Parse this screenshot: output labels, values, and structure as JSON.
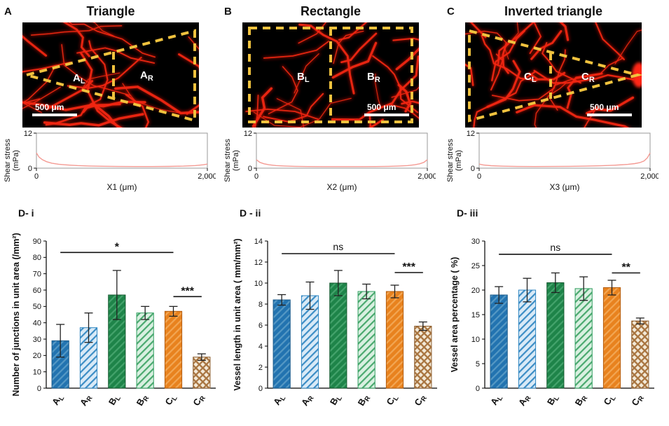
{
  "figure": {
    "top_panels": [
      {
        "letter": "A",
        "title": "Triangle",
        "shape": "triangle",
        "regions": [
          {
            "main": "A",
            "sub": "L"
          },
          {
            "main": "A",
            "sub": "R"
          }
        ],
        "scale_bar": {
          "text": "500 μm",
          "align": "left"
        }
      },
      {
        "letter": "B",
        "title": "Rectangle",
        "shape": "rectangle",
        "regions": [
          {
            "main": "B",
            "sub": "L"
          },
          {
            "main": "B",
            "sub": "R"
          }
        ],
        "scale_bar": {
          "text": "500 μm",
          "align": "right"
        }
      },
      {
        "letter": "C",
        "title": "Inverted triangle",
        "shape": "inverted-triangle",
        "regions": [
          {
            "main": "C",
            "sub": "L"
          },
          {
            "main": "C",
            "sub": "R"
          }
        ],
        "scale_bar": {
          "text": "500 μm",
          "align": "right"
        }
      }
    ],
    "bottom_panels": [
      {
        "label": "D- i"
      },
      {
        "label": "D - ii"
      },
      {
        "label": "D- iii"
      }
    ]
  },
  "colors": {
    "vessel_red": "#f02612",
    "vessel_glow": "#d81607",
    "dash_yellow": "#f0c23e",
    "curve_pink": "#f49a93",
    "axis_black": "#111111",
    "scalebar_white": "#ffffff"
  },
  "bar_styles": [
    {
      "fill": "#2273b0",
      "hatch": "#5598c4",
      "edge": "#1a5a8a",
      "cross": false
    },
    {
      "fill": "#d9eaf7",
      "hatch": "#3c8dc5",
      "edge": "#2e86c1",
      "cross": false
    },
    {
      "fill": "#1e8449",
      "hatch": "#44a36c",
      "edge": "#14592f",
      "cross": false
    },
    {
      "fill": "#d9f0e1",
      "hatch": "#4aa96f",
      "edge": "#2f9e5f",
      "cross": false
    },
    {
      "fill": "#e8821e",
      "hatch": "#f2a653",
      "edge": "#b35c0e",
      "cross": false
    },
    {
      "fill": "#f3ead9",
      "hatch": "#a8743f",
      "edge": "#8a5a2b",
      "cross": true
    }
  ],
  "chart_data": [
    {
      "id": "shear-A",
      "type": "line",
      "ylabel_lines": [
        "Shear stress",
        "(mPa)"
      ],
      "xlabel": "X1 (μm)",
      "xlim": [
        0,
        2000
      ],
      "ylim": [
        0,
        12
      ],
      "xtick_labels": [
        "0",
        "2,000"
      ],
      "ytick_labels": [
        "0",
        "12"
      ],
      "x": [
        0,
        30,
        70,
        120,
        180,
        260,
        360,
        480,
        620,
        780,
        960,
        1150,
        1350,
        1550,
        1720,
        1860,
        1950,
        2000
      ],
      "y": [
        5.2,
        3.8,
        2.9,
        2.2,
        1.7,
        1.35,
        1.1,
        0.9,
        0.75,
        0.65,
        0.58,
        0.55,
        0.55,
        0.6,
        0.7,
        0.9,
        1.15,
        1.4
      ]
    },
    {
      "id": "shear-B",
      "type": "line",
      "ylabel_lines": [
        "Shear stress",
        "(mPa)"
      ],
      "xlabel": "X2 (μm)",
      "xlim": [
        0,
        2000
      ],
      "ylim": [
        0,
        12
      ],
      "xtick_labels": [
        "0",
        "2,000"
      ],
      "ytick_labels": [
        "0",
        "12"
      ],
      "x": [
        0,
        40,
        90,
        150,
        230,
        330,
        450,
        600,
        780,
        1000,
        1220,
        1400,
        1550,
        1670,
        1770,
        1850,
        1910,
        1960,
        2000
      ],
      "y": [
        2.9,
        2.0,
        1.5,
        1.15,
        0.9,
        0.75,
        0.63,
        0.56,
        0.53,
        0.52,
        0.53,
        0.56,
        0.63,
        0.75,
        0.9,
        1.15,
        1.5,
        2.0,
        2.9
      ]
    },
    {
      "id": "shear-C",
      "type": "line",
      "ylabel_lines": [
        "Shear stress",
        "(mPa)"
      ],
      "xlabel": "X3 (μm)",
      "xlim": [
        0,
        2000
      ],
      "ylim": [
        0,
        12
      ],
      "xtick_labels": [
        "0",
        "2,000"
      ],
      "ytick_labels": [
        "0",
        "12"
      ],
      "x": [
        0,
        50,
        140,
        280,
        450,
        650,
        850,
        1050,
        1240,
        1420,
        1580,
        1740,
        1820,
        1880,
        1930,
        1970,
        2000
      ],
      "y": [
        1.4,
        1.1,
        0.85,
        0.68,
        0.58,
        0.55,
        0.57,
        0.62,
        0.7,
        0.82,
        1.0,
        1.3,
        1.55,
        1.9,
        2.5,
        3.6,
        5.2
      ]
    },
    {
      "id": "junctions",
      "type": "bar",
      "ylabel": "Number of junctions in unit area (/mm²)",
      "categories": [
        "A_L",
        "A_R",
        "B_L",
        "B_R",
        "C_L",
        "C_R"
      ],
      "values": [
        29,
        37,
        57,
        46,
        47,
        19
      ],
      "errors": [
        10,
        9,
        15,
        4,
        3,
        2
      ],
      "ylim": [
        0,
        90
      ],
      "ytick_step": 10,
      "annotations": [
        {
          "label": "*",
          "from": 0,
          "to": 4,
          "y": 83
        },
        {
          "label": "***",
          "from": 4,
          "to": 5,
          "y": 56
        }
      ]
    },
    {
      "id": "length",
      "type": "bar",
      "ylabel": "Vessel length in unit area ( mm/mm²)",
      "categories": [
        "A_L",
        "A_R",
        "B_L",
        "B_R",
        "C_L",
        "C_R"
      ],
      "values": [
        8.4,
        8.8,
        10.0,
        9.2,
        9.2,
        5.9
      ],
      "errors": [
        0.5,
        1.3,
        1.2,
        0.7,
        0.6,
        0.4
      ],
      "ylim": [
        0,
        14
      ],
      "ytick_step": 2,
      "annotations": [
        {
          "label": "ns",
          "from": 0,
          "to": 4,
          "y": 12.8
        },
        {
          "label": "***",
          "from": 4,
          "to": 5,
          "y": 11.0
        }
      ]
    },
    {
      "id": "area",
      "type": "bar",
      "ylabel": "Vessel area percentage ( %)",
      "categories": [
        "A_L",
        "A_R",
        "B_L",
        "B_R",
        "C_L",
        "C_R"
      ],
      "values": [
        19,
        20,
        21.5,
        20.3,
        20.5,
        13.7
      ],
      "errors": [
        1.7,
        2.4,
        2.0,
        2.4,
        1.5,
        0.6
      ],
      "ylim": [
        0,
        30
      ],
      "ytick_step": 5,
      "annotations": [
        {
          "label": "ns",
          "from": 0,
          "to": 4,
          "y": 27.3
        },
        {
          "label": "**",
          "from": 4,
          "to": 5,
          "y": 23.5
        }
      ]
    }
  ]
}
